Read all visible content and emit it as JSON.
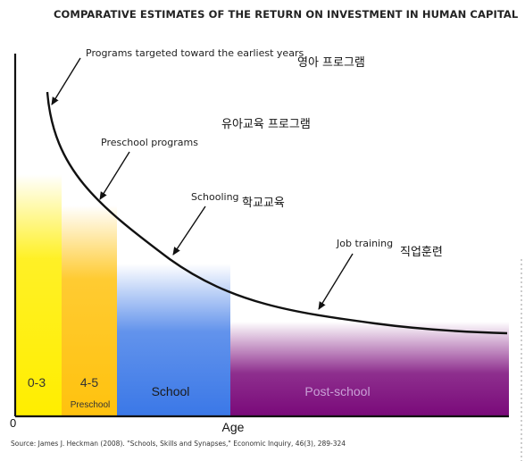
{
  "chart_data": {
    "type": "line",
    "title": "COMPARATIVE ESTIMATES OF THE RETURN ON INVESTMENT IN HUMAN CAPITAL",
    "xlabel": "Age",
    "ylabel": "",
    "origin_label": "0",
    "segments": [
      {
        "label": "0-3",
        "sub": "",
        "color": "#ffee00",
        "label_color": "#333333"
      },
      {
        "label": "4-5",
        "sub": "Preschool",
        "color": "#ffc20e",
        "label_color": "#333333"
      },
      {
        "label": "School",
        "sub": "",
        "color": "#3b78e7",
        "label_color": "#1a1a1a"
      },
      {
        "label": "Post-school",
        "sub": "",
        "color": "#7a0a7a",
        "label_color": "#c9a0d6"
      }
    ],
    "curve": {
      "shape": "decreasing",
      "description_visible": false
    },
    "annotations": [
      {
        "text": "Programs targeted toward the earliest years",
        "korean": "영아 프로그램"
      },
      {
        "text": "",
        "korean": "유아교육 프로그램"
      },
      {
        "text": "Preschool programs",
        "korean": ""
      },
      {
        "text": "Schooling",
        "korean": "학교교육"
      },
      {
        "text": "Job training",
        "korean": "직업훈련"
      }
    ],
    "source": "Source: James J. Heckman (2008). \"Schools, Skills and Synapses,\" Economic Inquiry, 46(3), 289-324"
  }
}
